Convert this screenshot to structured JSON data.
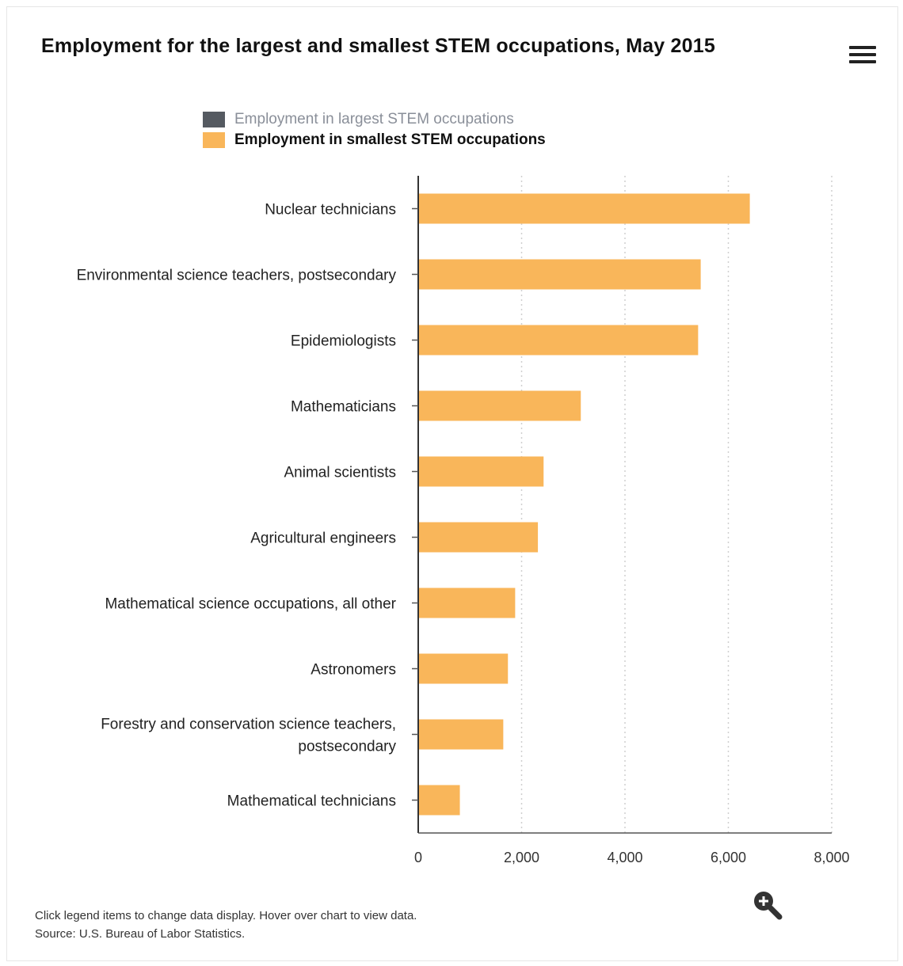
{
  "header": {
    "title": "Employment for the largest and smallest STEM occupations, May 2015",
    "menu_icon": "hamburger-menu-icon"
  },
  "legend": {
    "items": [
      {
        "label": "Employment in largest STEM occupations",
        "color": "#555a61",
        "state": "inactive"
      },
      {
        "label": "Employment in smallest STEM occupations",
        "color": "#f9b65a",
        "state": "active"
      }
    ]
  },
  "chart_data": {
    "type": "bar",
    "orientation": "horizontal",
    "categories": [
      "Nuclear technicians",
      "Environmental science teachers, postsecondary",
      "Epidemiologists",
      "Mathematicians",
      "Animal scientists",
      "Agricultural engineers",
      "Mathematical science occupations, all other",
      "Astronomers",
      "Forestry and conservation science teachers, postsecondary",
      "Mathematical technicians"
    ],
    "series": [
      {
        "name": "Employment in smallest STEM occupations",
        "color": "#f9b65a",
        "values": [
          6400,
          5450,
          5400,
          3130,
          2410,
          2300,
          1860,
          1720,
          1630,
          790
        ]
      }
    ],
    "x_ticks": [
      "0",
      "2,000",
      "4,000",
      "6,000",
      "8,000"
    ],
    "xlim": [
      0,
      8000
    ],
    "grid": "vertical dotted",
    "legend_position": "top"
  },
  "footer": {
    "note": "Click legend items to change data display. Hover over chart to view data.",
    "source": "Source: U.S. Bureau of Labor Statistics.",
    "zoom_icon": "zoom-in-icon"
  }
}
